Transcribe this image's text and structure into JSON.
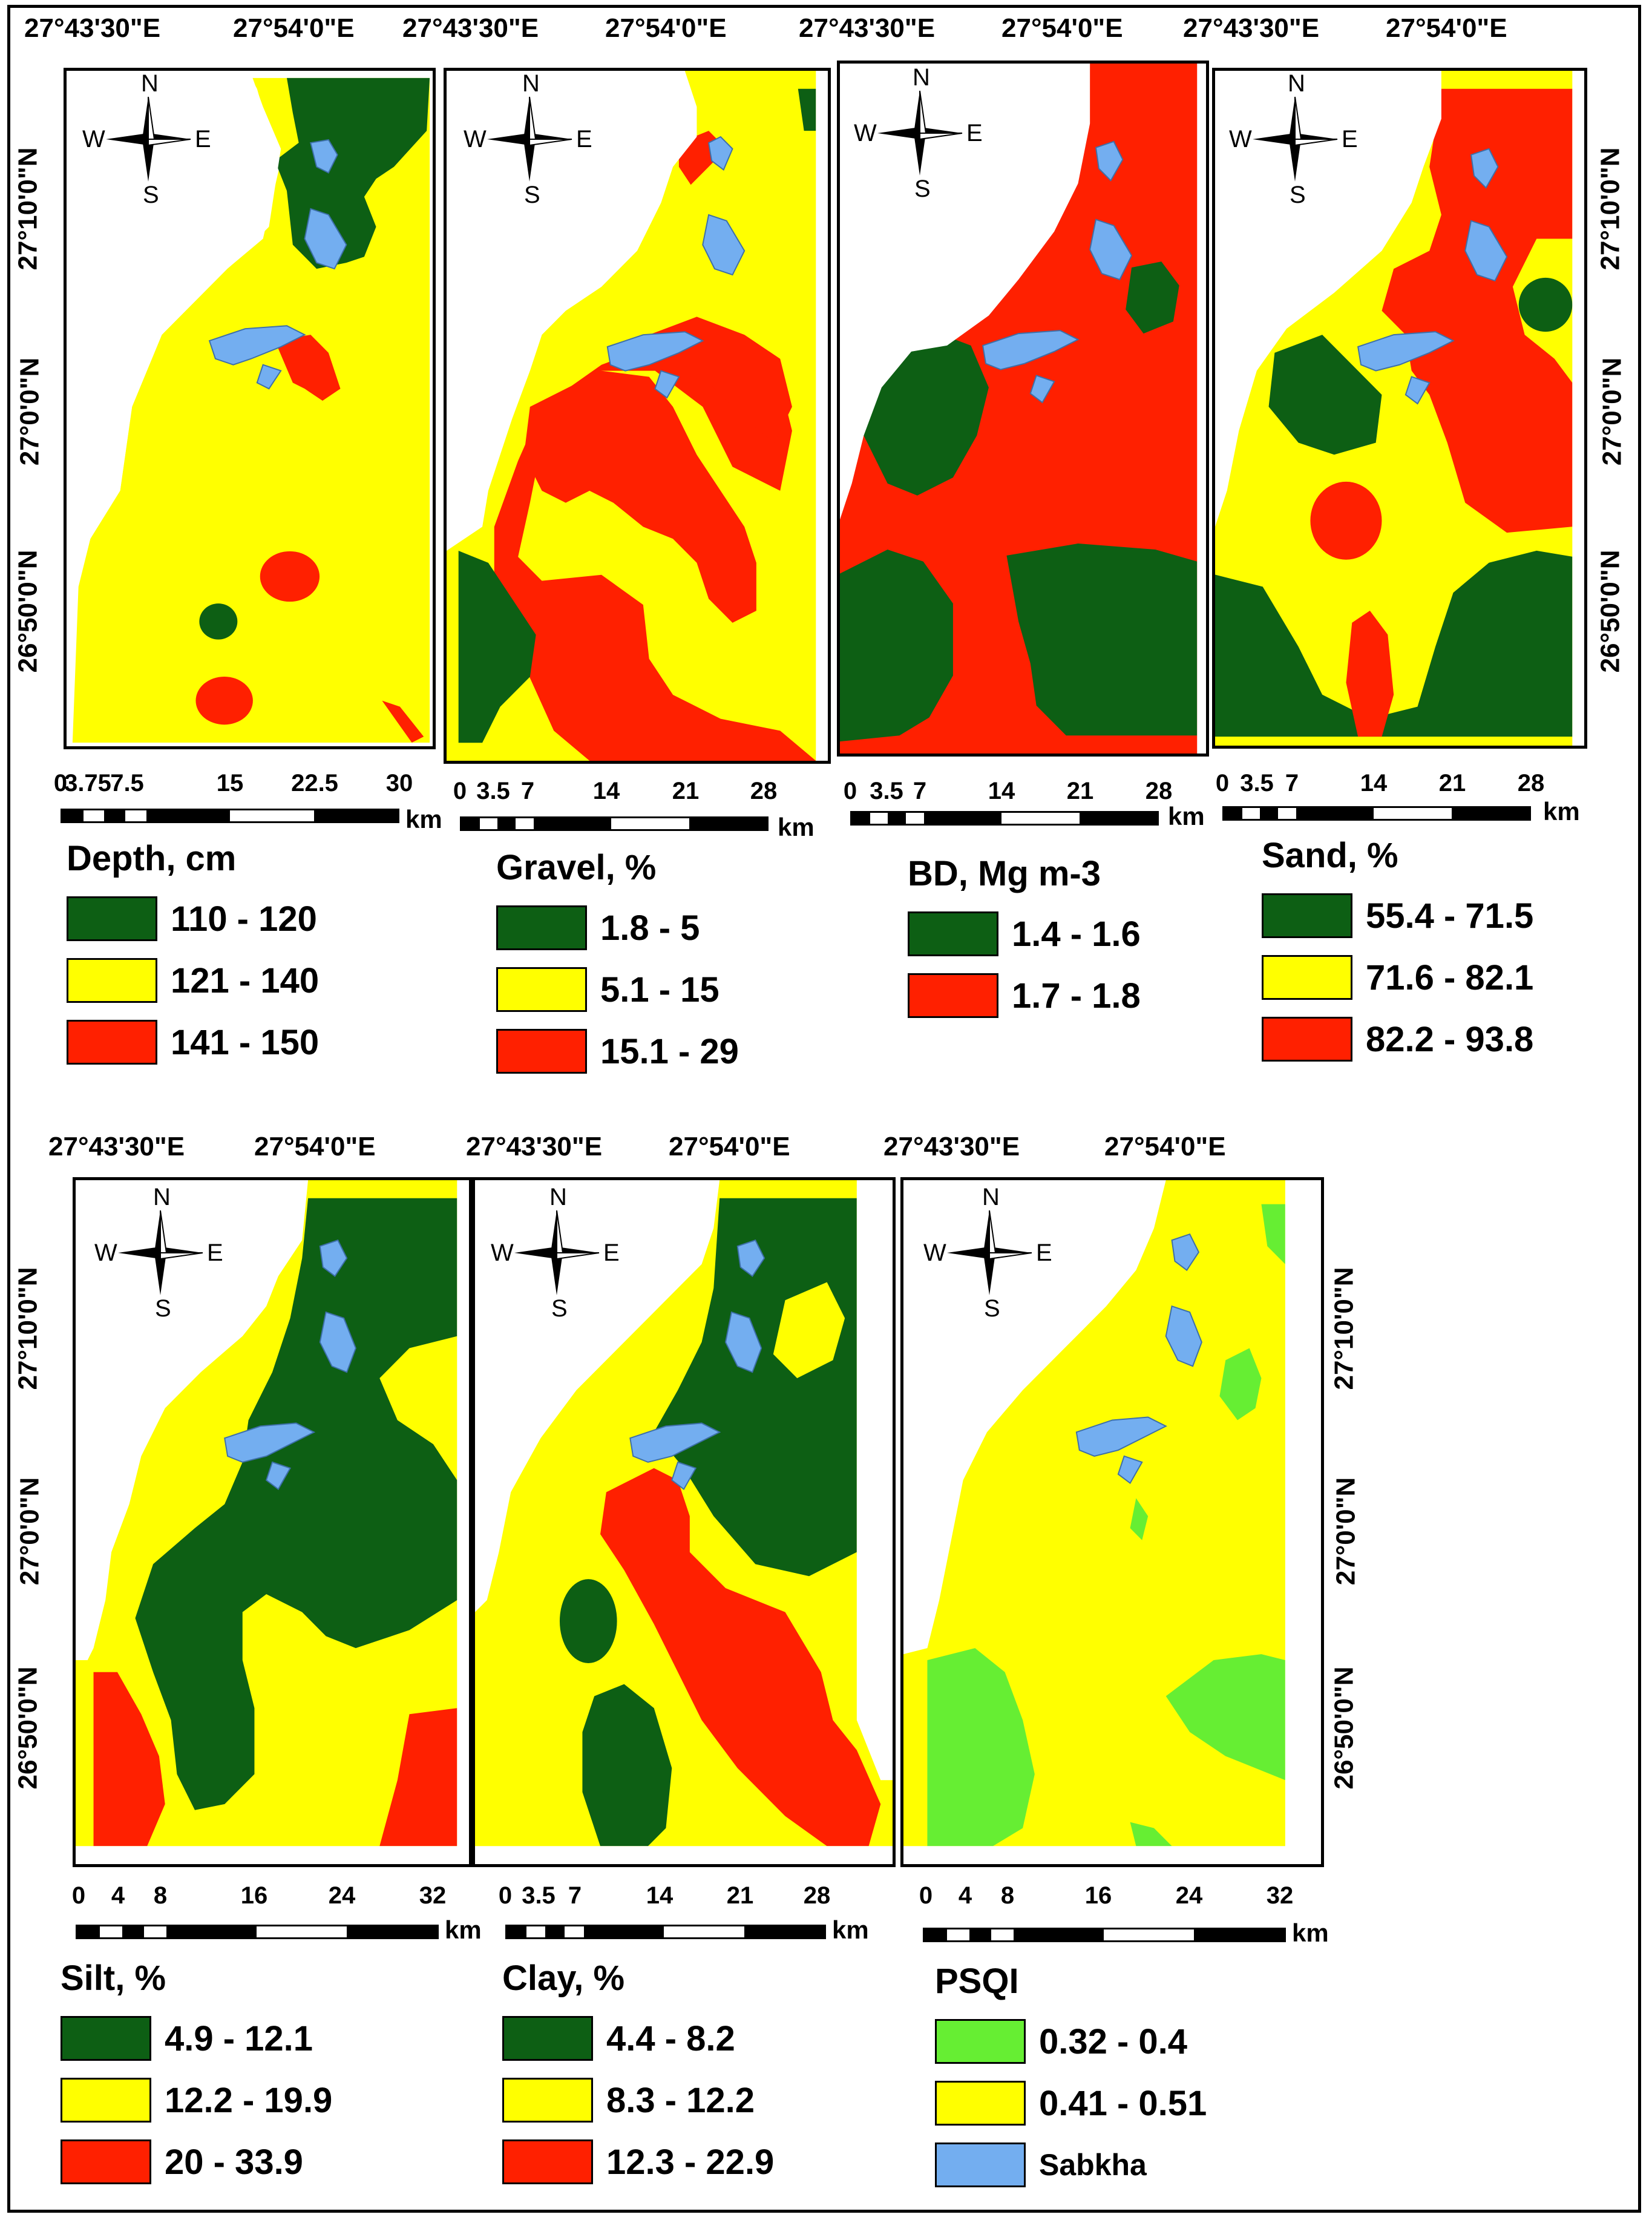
{
  "colors": {
    "green": "#0d5f14",
    "yellow": "#ffff00",
    "red": "#ff2000",
    "lightgreen": "#66ee33",
    "sabkha": "#73aef0",
    "black": "#000000"
  },
  "compass": {
    "n": "N",
    "s": "S",
    "w": "W",
    "e": "E"
  },
  "top_lon": [
    "27°43'30\"E",
    "27°54'0\"E"
  ],
  "lat": {
    "a": "27°10'0\"N",
    "b": "27°0'0\"N",
    "c": "26°50'0\"N"
  },
  "panels": [
    {
      "id": "depth",
      "title": "Depth, cm",
      "scale": [
        "0",
        "3.75",
        "7.5",
        "15",
        "22.5",
        "30"
      ],
      "unit": "km",
      "classes": [
        {
          "label": "110 - 120",
          "color": "#0d5f14"
        },
        {
          "label": "121 - 140",
          "color": "#ffff00"
        },
        {
          "label": "141 - 150",
          "color": "#ff2000"
        }
      ]
    },
    {
      "id": "gravel",
      "title": "Gravel, %",
      "scale": [
        "0",
        "3.5",
        "7",
        "14",
        "21",
        "28"
      ],
      "unit": "km",
      "classes": [
        {
          "label": "1.8 - 5",
          "color": "#0d5f14"
        },
        {
          "label": "5.1 - 15",
          "color": "#ffff00"
        },
        {
          "label": "15.1 - 29",
          "color": "#ff2000"
        }
      ]
    },
    {
      "id": "bd",
      "title": "BD, Mg m-3",
      "scale": [
        "0",
        "3.5",
        "7",
        "14",
        "21",
        "28"
      ],
      "unit": "km",
      "classes": [
        {
          "label": "1.4 - 1.6",
          "color": "#0d5f14"
        },
        {
          "label": "1.7 - 1.8",
          "color": "#ff2000"
        }
      ]
    },
    {
      "id": "sand",
      "title": "Sand, %",
      "scale": [
        "0",
        "3.5",
        "7",
        "14",
        "21",
        "28"
      ],
      "unit": "km",
      "classes": [
        {
          "label": "55.4 - 71.5",
          "color": "#0d5f14"
        },
        {
          "label": "71.6 - 82.1",
          "color": "#ffff00"
        },
        {
          "label": "82.2 - 93.8",
          "color": "#ff2000"
        }
      ]
    },
    {
      "id": "silt",
      "title": "Silt, %",
      "scale": [
        "0",
        "4",
        "8",
        "16",
        "24",
        "32"
      ],
      "unit": "km",
      "classes": [
        {
          "label": "4.9 - 12.1",
          "color": "#0d5f14"
        },
        {
          "label": "12.2 - 19.9",
          "color": "#ffff00"
        },
        {
          "label": "20 - 33.9",
          "color": "#ff2000"
        }
      ]
    },
    {
      "id": "clay",
      "title": "Clay, %",
      "scale": [
        "0",
        "3.5",
        "7",
        "14",
        "21",
        "28"
      ],
      "unit": "km",
      "classes": [
        {
          "label": "4.4 - 8.2",
          "color": "#0d5f14"
        },
        {
          "label": "8.3 - 12.2",
          "color": "#ffff00"
        },
        {
          "label": "12.3 - 22.9",
          "color": "#ff2000"
        }
      ]
    },
    {
      "id": "psqi",
      "title": "PSQI",
      "scale": [
        "0",
        "4",
        "8",
        "16",
        "24",
        "32"
      ],
      "unit": "km",
      "classes": [
        {
          "label": "0.32 - 0.4",
          "color": "#66ee33"
        },
        {
          "label": "0.41 - 0.51",
          "color": "#ffff00"
        },
        {
          "label": "Sabkha",
          "color": "#73aef0"
        }
      ]
    }
  ]
}
